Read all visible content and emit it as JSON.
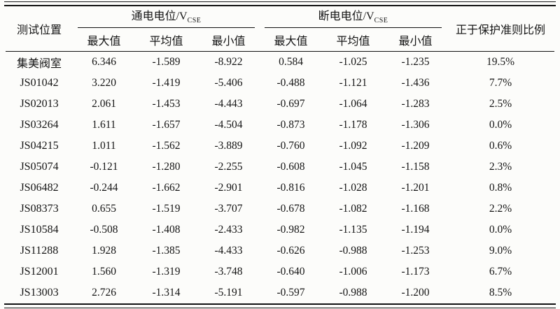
{
  "page": {
    "background": "#fcfcfa",
    "rule_color": "#111111",
    "text_color": "#151515"
  },
  "table": {
    "header": {
      "position": "测试位置",
      "on_group": "通电电位/V",
      "off_group": "断电电位/V",
      "subscript": "CSE",
      "stat_headers": [
        "最大值",
        "平均值",
        "最小值"
      ],
      "ratio": "正于保护准则比例"
    },
    "rows": [
      {
        "name": "集美阀室",
        "values": [
          "6.346",
          "-1.589",
          "-8.922",
          "0.584",
          "-1.025",
          "-1.235",
          "19.5%"
        ]
      },
      {
        "name": "JS01042",
        "values": [
          "3.220",
          "-1.419",
          "-5.406",
          "-0.488",
          "-1.121",
          "-1.436",
          "7.7%"
        ]
      },
      {
        "name": "JS02013",
        "values": [
          "2.061",
          "-1.453",
          "-4.443",
          "-0.697",
          "-1.064",
          "-1.283",
          "2.5%"
        ]
      },
      {
        "name": "JS03264",
        "values": [
          "1.611",
          "-1.657",
          "-4.504",
          "-0.873",
          "-1.178",
          "-1.306",
          "0.0%"
        ]
      },
      {
        "name": "JS04215",
        "values": [
          "1.011",
          "-1.562",
          "-3.889",
          "-0.760",
          "-1.092",
          "-1.209",
          "0.6%"
        ]
      },
      {
        "name": "JS05074",
        "values": [
          "-0.121",
          "-1.280",
          "-2.255",
          "-0.608",
          "-1.045",
          "-1.158",
          "2.3%"
        ]
      },
      {
        "name": "JS06482",
        "values": [
          "-0.244",
          "-1.662",
          "-2.901",
          "-0.816",
          "-1.028",
          "-1.201",
          "0.8%"
        ]
      },
      {
        "name": "JS08373",
        "values": [
          "0.655",
          "-1.519",
          "-3.707",
          "-0.678",
          "-1.082",
          "-1.168",
          "2.2%"
        ]
      },
      {
        "name": "JS10584",
        "values": [
          "-0.508",
          "-1.408",
          "-2.433",
          "-0.982",
          "-1.135",
          "-1.194",
          "0.0%"
        ]
      },
      {
        "name": "JS11288",
        "values": [
          "1.928",
          "-1.385",
          "-4.433",
          "-0.626",
          "-0.988",
          "-1.253",
          "9.0%"
        ]
      },
      {
        "name": "JS12001",
        "values": [
          "1.560",
          "-1.319",
          "-3.748",
          "-0.640",
          "-1.006",
          "-1.173",
          "6.7%"
        ]
      },
      {
        "name": "JS13003",
        "values": [
          "2.726",
          "-1.314",
          "-5.191",
          "-0.597",
          "-0.988",
          "-1.200",
          "8.5%"
        ]
      }
    ]
  }
}
